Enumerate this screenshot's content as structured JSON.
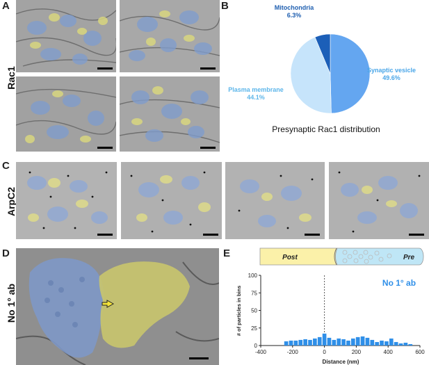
{
  "panels": {
    "A": {
      "letter": "A",
      "row_label": "Rac1"
    },
    "B": {
      "letter": "B",
      "title": "Presynaptic Rac1 distribution",
      "slices": [
        {
          "name": "Synaptic vesicle",
          "percent_label": "49.6%",
          "value": 49.6,
          "color": "#64a6f0",
          "label_color": "#4aa6e8"
        },
        {
          "name": "Plasma membrane",
          "percent_label": "44.1%",
          "value": 44.1,
          "color": "#c6e4fb",
          "label_color": "#5db6ea"
        },
        {
          "name": "Mitochondria",
          "percent_label": "6.3%",
          "value": 6.3,
          "color": "#1c5fb8",
          "label_color": "#1f5fb0"
        }
      ]
    },
    "C": {
      "letter": "C",
      "row_label": "ArpC2"
    },
    "D": {
      "letter": "D",
      "row_label": "No 1° ab"
    },
    "E": {
      "letter": "E",
      "post_label": "Post",
      "pre_label": "Pre",
      "legend": "No 1° ab"
    }
  },
  "chart_data": {
    "type": "bar",
    "title": "",
    "xlabel": "Distance (nm)",
    "ylabel": "# of particles in bins",
    "annotation": "No 1° ab",
    "xlim": [
      -400,
      600
    ],
    "ylim": [
      0,
      100
    ],
    "xticks": [
      -400,
      -200,
      0,
      200,
      400,
      600
    ],
    "yticks": [
      0,
      25,
      50,
      75,
      100
    ],
    "x": [
      -240,
      -210,
      -180,
      -150,
      -120,
      -90,
      -60,
      -30,
      0,
      30,
      60,
      90,
      120,
      150,
      180,
      210,
      240,
      270,
      300,
      330,
      360,
      390,
      420,
      450,
      480,
      510,
      540
    ],
    "values": [
      6,
      7,
      7,
      8,
      9,
      8,
      10,
      12,
      17,
      11,
      8,
      10,
      9,
      7,
      10,
      12,
      13,
      11,
      8,
      5,
      7,
      6,
      10,
      5,
      3,
      4,
      2
    ],
    "bin_width": 30,
    "bar_color": "#2f8fe8",
    "reference_line_x": 0
  }
}
